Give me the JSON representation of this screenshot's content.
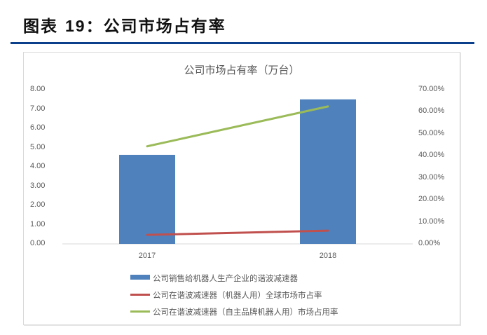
{
  "figure": {
    "label": "图表",
    "number": "19",
    "separator": "：",
    "title": "公司市场占有率"
  },
  "colors": {
    "rule": "#0b3f8c",
    "bar": "#4f81bd",
    "red_line": "#c0504d",
    "green_line": "#9bbb59",
    "axis_text": "#595959",
    "gridline": "#d9d9d9"
  },
  "chart_data": {
    "type": "bar",
    "title": "公司市场占有率（万台）",
    "categories": [
      "2017",
      "2018"
    ],
    "series": [
      {
        "name": "公司销售给机器人生产企业的谐波减速器",
        "type": "bar",
        "axis": "left",
        "color": "#4f81bd",
        "values": [
          4.62,
          7.5
        ]
      },
      {
        "name": "公司在谐波减速器（机器人用）全球市场市占率",
        "type": "line",
        "axis": "right",
        "color": "#c0504d",
        "values": [
          0.041,
          0.06
        ]
      },
      {
        "name": "公司在谐波减速器（自主品牌机器人用）市场占用率",
        "type": "line",
        "axis": "right",
        "color": "#9bbb59",
        "values": [
          0.443,
          0.624
        ]
      }
    ],
    "y_left": {
      "ylim": [
        0,
        8
      ],
      "ticks": [
        "0.00",
        "1.00",
        "2.00",
        "3.00",
        "4.00",
        "5.00",
        "6.00",
        "7.00",
        "8.00"
      ]
    },
    "y_right": {
      "ylim": [
        0,
        0.7
      ],
      "ticks": [
        "0.00%",
        "10.00%",
        "20.00%",
        "30.00%",
        "40.00%",
        "50.00%",
        "60.00%",
        "70.00%"
      ]
    },
    "xlabel": "",
    "ylabel": "",
    "grid": false,
    "legend_position": "bottom"
  }
}
